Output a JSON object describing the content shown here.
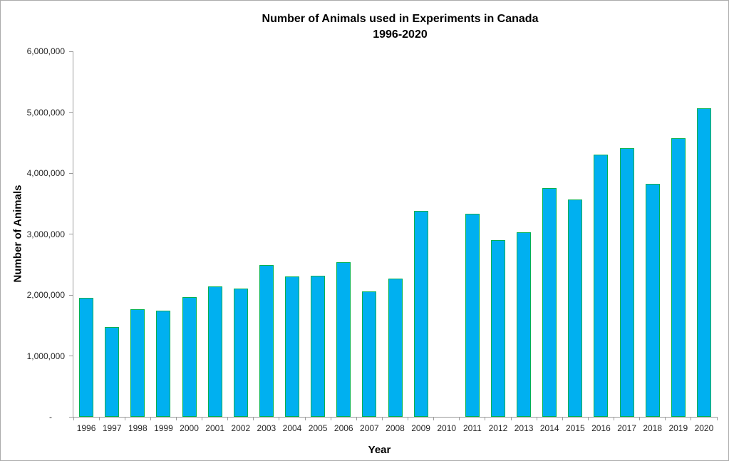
{
  "chart_data": {
    "type": "bar",
    "title": "Number of Animals used in Experiments in Canada",
    "subtitle": "1996-2020",
    "xlabel": "Year",
    "ylabel": "Number of Animals",
    "ylim": [
      0,
      6000000
    ],
    "ytick_interval": 1000000,
    "ytick_labels": [
      "-",
      "1,000,000",
      "2,000,000",
      "3,000,000",
      "4,000,000",
      "5,000,000",
      "6,000,000"
    ],
    "categories": [
      "1996",
      "1997",
      "1998",
      "1999",
      "2000",
      "2001",
      "2002",
      "2003",
      "2004",
      "2005",
      "2006",
      "2007",
      "2008",
      "2009",
      "2010",
      "2011",
      "2012",
      "2013",
      "2014",
      "2015",
      "2016",
      "2017",
      "2018",
      "2019",
      "2020"
    ],
    "values": [
      1950000,
      1470000,
      1770000,
      1740000,
      1960000,
      2140000,
      2100000,
      2490000,
      2310000,
      2320000,
      2540000,
      2060000,
      2270000,
      3380000,
      null,
      3330000,
      2900000,
      3030000,
      3750000,
      3570000,
      4310000,
      4410000,
      3830000,
      4570000,
      5070000
    ],
    "missing_categories": [
      "2010"
    ],
    "grid": false,
    "legend": false,
    "colors": {
      "bar_fill": "#00b0f0",
      "bar_border": "#00b050",
      "axis": "#9c9c9c",
      "tick_label": "#262626",
      "title": "#000000"
    }
  }
}
